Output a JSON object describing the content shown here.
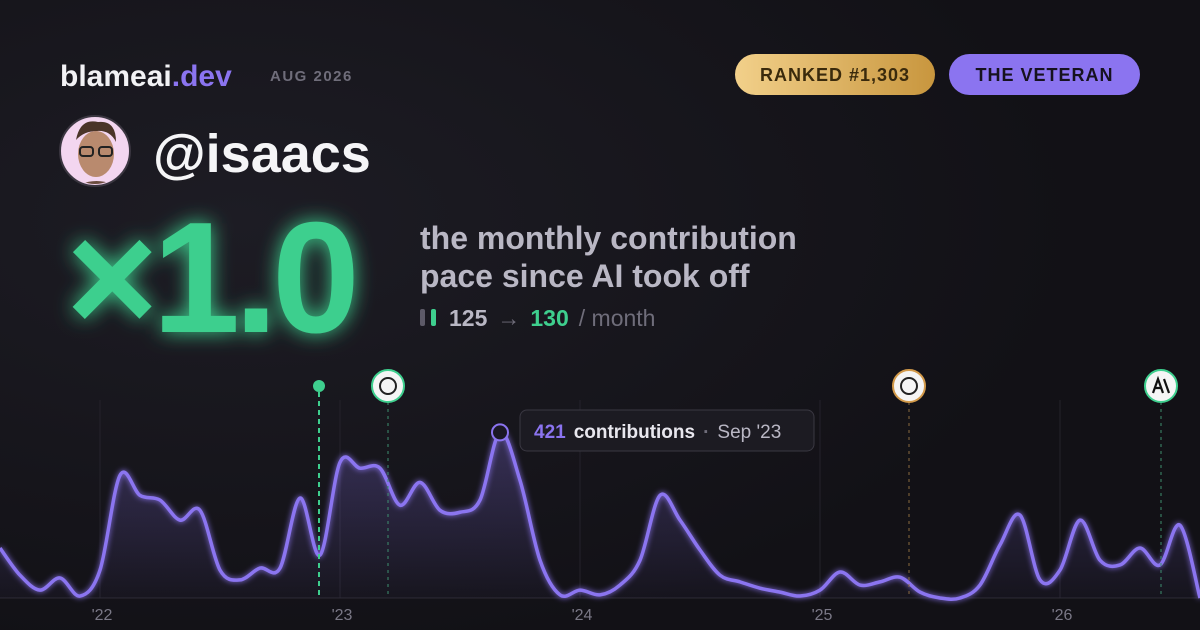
{
  "header": {
    "brand": "blameai",
    "brand_tld": ".dev",
    "period": "AUG 2026",
    "rank_badge": "RANKED #1,303",
    "title_badge": "THE VETERAN"
  },
  "profile": {
    "handle": "@isaacs"
  },
  "stat": {
    "multiplier": "×1.0",
    "description_line1": "the monthly contribution",
    "description_line2": "pace since AI took off",
    "before": "125",
    "arrow": "→",
    "after": "130",
    "unit": "/ month"
  },
  "chart_data": {
    "type": "line",
    "color": "#8b74f0",
    "categories": [
      null,
      null,
      null,
      null,
      null,
      "'22",
      null,
      null,
      null,
      null,
      null,
      null,
      null,
      null,
      null,
      null,
      null,
      "'23",
      null,
      null,
      null,
      null,
      null,
      null,
      null,
      null,
      null,
      null,
      null,
      "'24",
      null,
      null,
      null,
      null,
      null,
      null,
      null,
      null,
      null,
      null,
      null,
      "'25",
      null,
      null,
      null,
      null,
      null,
      null,
      null,
      null,
      null,
      null,
      null,
      "'26",
      null,
      null,
      null,
      null,
      null,
      null,
      null
    ],
    "values": [
      127,
      58,
      20,
      51,
      5,
      71,
      312,
      261,
      249,
      198,
      223,
      71,
      46,
      76,
      76,
      254,
      109,
      345,
      330,
      330,
      236,
      294,
      223,
      218,
      249,
      421,
      299,
      96,
      8,
      20,
      8,
      33,
      96,
      261,
      198,
      122,
      58,
      41,
      25,
      15,
      5,
      20,
      66,
      33,
      41,
      53,
      15,
      0,
      0,
      33,
      135,
      211,
      46,
      71,
      198,
      96,
      84,
      127,
      84,
      185,
      0
    ],
    "ylim": [
      0,
      450
    ],
    "tooltip": {
      "index": 25,
      "label": "contributions",
      "date": "Sep '23"
    }
  }
}
